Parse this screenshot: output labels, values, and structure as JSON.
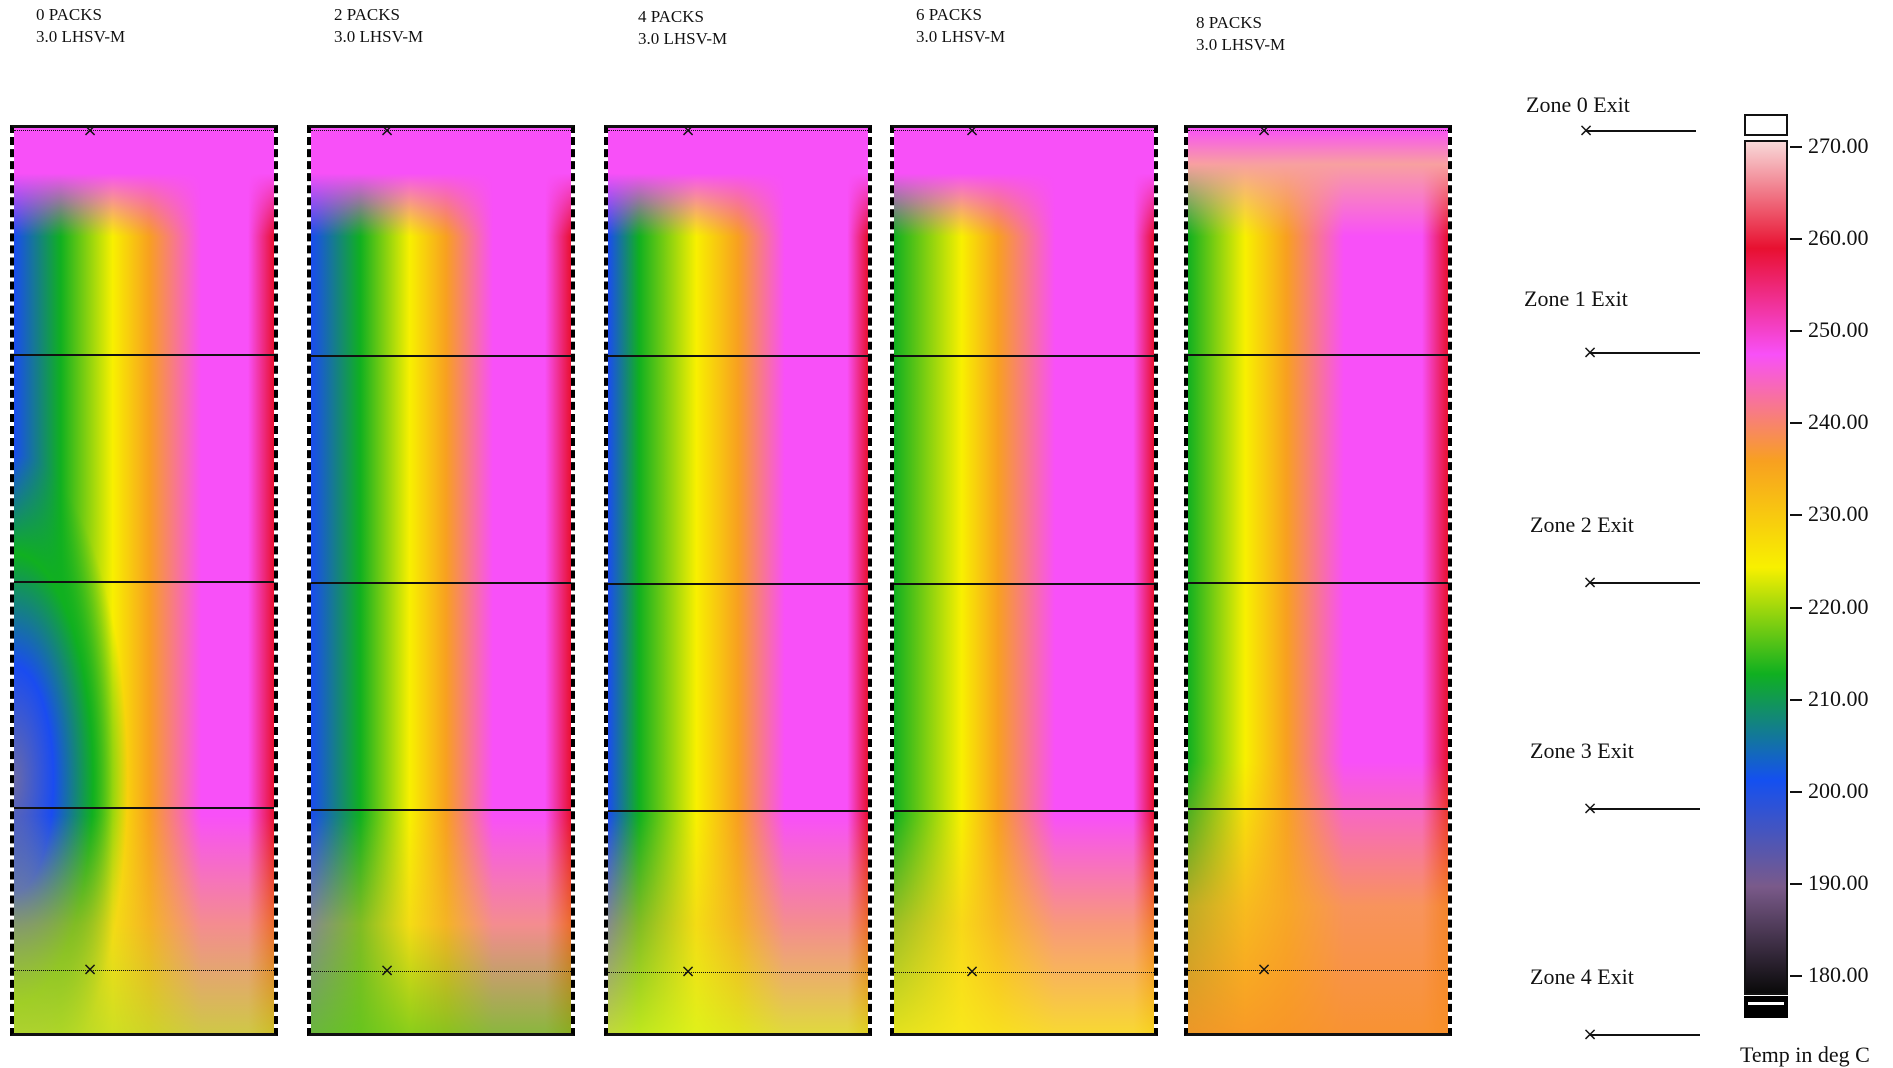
{
  "chart_data": {
    "type": "heatmap",
    "panels": [
      {
        "title": "0 PACKS",
        "subtitle": "3.0 LHSV-M"
      },
      {
        "title": "2 PACKS",
        "subtitle": "3.0 LHSV-M"
      },
      {
        "title": "4 PACKS",
        "subtitle": "3.0 LHSV-M"
      },
      {
        "title": "6 PACKS",
        "subtitle": "3.0 LHSV-M"
      },
      {
        "title": "8 PACKS",
        "subtitle": "3.0 LHSV-M"
      }
    ],
    "zone_labels": [
      "Zone 0 Exit",
      "Zone 1 Exit",
      "Zone 2 Exit",
      "Zone 3 Exit",
      "Zone 4 Exit"
    ],
    "colorbar": {
      "ticks": [
        "270.00",
        "260.00",
        "250.00",
        "240.00",
        "230.00",
        "220.00",
        "210.00",
        "200.00",
        "190.00",
        "180.00"
      ],
      "range": [
        180,
        270
      ],
      "label": "Temp in deg C",
      "colors": [
        "#0a0a0a",
        "#7a5a8a",
        "#1450f0",
        "#10b020",
        "#f8f000",
        "#f8a020",
        "#f850f8",
        "#e81030",
        "#f8d8d8"
      ]
    }
  }
}
